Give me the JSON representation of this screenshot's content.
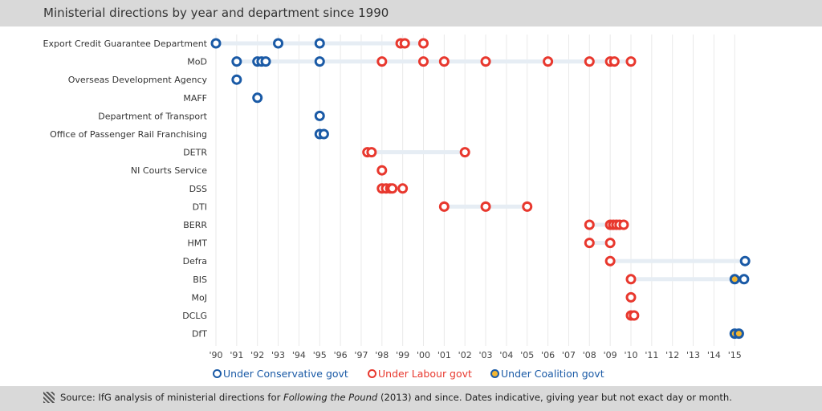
{
  "title": "Ministerial directions by year and department since 1990",
  "source": {
    "prefix": "Source: IfG analysis of ministerial directions for ",
    "italic": "Following the Pound",
    "suffix": " (2013) and since. Dates indicative, giving year but not exact day or month."
  },
  "colors": {
    "conservative": "#1a5aa6",
    "labour": "#e8382e",
    "coalition_fill": "#f2b632",
    "track": "#e6edf4",
    "grid": "#e9e9e9"
  },
  "legend": [
    {
      "key": "conservative",
      "label": "Under Conservative govt"
    },
    {
      "key": "labour",
      "label": "Under Labour govt"
    },
    {
      "key": "coalition",
      "label": "Under Coalition govt"
    }
  ],
  "chart_data": {
    "type": "scatter",
    "xlim": [
      1990,
      2015.5
    ],
    "x_ticks": [
      {
        "v": 1990,
        "label": "'90"
      },
      {
        "v": 1991,
        "label": "'91"
      },
      {
        "v": 1992,
        "label": "'92"
      },
      {
        "v": 1993,
        "label": "'93"
      },
      {
        "v": 1994,
        "label": "'94"
      },
      {
        "v": 1995,
        "label": "'95"
      },
      {
        "v": 1996,
        "label": "'96"
      },
      {
        "v": 1997,
        "label": "'97"
      },
      {
        "v": 1998,
        "label": "'98"
      },
      {
        "v": 1999,
        "label": "'99"
      },
      {
        "v": 2000,
        "label": "'00"
      },
      {
        "v": 2001,
        "label": "'01"
      },
      {
        "v": 2002,
        "label": "'02"
      },
      {
        "v": 2003,
        "label": "'03"
      },
      {
        "v": 2004,
        "label": "'04"
      },
      {
        "v": 2005,
        "label": "'05"
      },
      {
        "v": 2006,
        "label": "'06"
      },
      {
        "v": 2007,
        "label": "'07"
      },
      {
        "v": 2008,
        "label": "'08"
      },
      {
        "v": 2009,
        "label": "'09"
      },
      {
        "v": 2010,
        "label": "'10"
      },
      {
        "v": 2011,
        "label": "'11"
      },
      {
        "v": 2012,
        "label": "'12"
      },
      {
        "v": 2013,
        "label": "'13"
      },
      {
        "v": 2014,
        "label": "'14"
      },
      {
        "v": 2015,
        "label": "'15"
      }
    ],
    "departments": [
      {
        "name": "Export Credit Guarantee Department",
        "points": [
          {
            "x": 1990.0,
            "govt": "conservative"
          },
          {
            "x": 1993.0,
            "govt": "conservative"
          },
          {
            "x": 1995.0,
            "govt": "conservative"
          },
          {
            "x": 1998.9,
            "govt": "labour"
          },
          {
            "x": 1999.1,
            "govt": "labour"
          },
          {
            "x": 2000.0,
            "govt": "labour"
          }
        ]
      },
      {
        "name": "MoD",
        "points": [
          {
            "x": 1991.0,
            "govt": "conservative"
          },
          {
            "x": 1992.0,
            "govt": "conservative"
          },
          {
            "x": 1992.2,
            "govt": "conservative"
          },
          {
            "x": 1992.4,
            "govt": "conservative"
          },
          {
            "x": 1995.0,
            "govt": "conservative"
          },
          {
            "x": 1998.0,
            "govt": "labour"
          },
          {
            "x": 2000.0,
            "govt": "labour"
          },
          {
            "x": 2001.0,
            "govt": "labour"
          },
          {
            "x": 2003.0,
            "govt": "labour"
          },
          {
            "x": 2006.0,
            "govt": "labour"
          },
          {
            "x": 2008.0,
            "govt": "labour"
          },
          {
            "x": 2009.0,
            "govt": "labour"
          },
          {
            "x": 2009.2,
            "govt": "labour"
          },
          {
            "x": 2010.0,
            "govt": "labour"
          }
        ]
      },
      {
        "name": "Overseas Development Agency",
        "points": [
          {
            "x": 1991.0,
            "govt": "conservative"
          }
        ]
      },
      {
        "name": "MAFF",
        "points": [
          {
            "x": 1992.0,
            "govt": "conservative"
          }
        ]
      },
      {
        "name": "Department of Transport",
        "points": [
          {
            "x": 1995.0,
            "govt": "conservative"
          }
        ]
      },
      {
        "name": "Office of Passenger Rail Franchising",
        "points": [
          {
            "x": 1995.0,
            "govt": "conservative"
          },
          {
            "x": 1995.2,
            "govt": "conservative"
          }
        ]
      },
      {
        "name": "DETR",
        "points": [
          {
            "x": 1997.3,
            "govt": "labour"
          },
          {
            "x": 1997.5,
            "govt": "labour"
          },
          {
            "x": 2002.0,
            "govt": "labour"
          }
        ]
      },
      {
        "name": "NI Courts Service",
        "points": [
          {
            "x": 1998.0,
            "govt": "labour"
          }
        ]
      },
      {
        "name": "DSS",
        "points": [
          {
            "x": 1998.0,
            "govt": "labour"
          },
          {
            "x": 1998.2,
            "govt": "labour"
          },
          {
            "x": 1998.4,
            "govt": "labour"
          },
          {
            "x": 1998.5,
            "govt": "labour"
          },
          {
            "x": 1999.0,
            "govt": "labour"
          }
        ]
      },
      {
        "name": "DTI",
        "points": [
          {
            "x": 2001.0,
            "govt": "labour"
          },
          {
            "x": 2003.0,
            "govt": "labour"
          },
          {
            "x": 2005.0,
            "govt": "labour"
          }
        ]
      },
      {
        "name": "BERR",
        "points": [
          {
            "x": 2008.0,
            "govt": "labour"
          },
          {
            "x": 2009.0,
            "govt": "labour"
          },
          {
            "x": 2009.15,
            "govt": "labour"
          },
          {
            "x": 2009.3,
            "govt": "labour"
          },
          {
            "x": 2009.45,
            "govt": "labour"
          },
          {
            "x": 2009.65,
            "govt": "labour"
          }
        ]
      },
      {
        "name": "HMT",
        "points": [
          {
            "x": 2008.0,
            "govt": "labour"
          },
          {
            "x": 2009.0,
            "govt": "labour"
          }
        ]
      },
      {
        "name": "Defra",
        "points": [
          {
            "x": 2009.0,
            "govt": "labour"
          },
          {
            "x": 2015.5,
            "govt": "conservative"
          }
        ]
      },
      {
        "name": "BIS",
        "points": [
          {
            "x": 2010.0,
            "govt": "labour"
          },
          {
            "x": 2015.0,
            "govt": "coalition"
          },
          {
            "x": 2015.45,
            "govt": "conservative"
          }
        ]
      },
      {
        "name": "MoJ",
        "points": [
          {
            "x": 2010.0,
            "govt": "labour"
          }
        ]
      },
      {
        "name": "DCLG",
        "points": [
          {
            "x": 2010.0,
            "govt": "labour"
          },
          {
            "x": 2010.15,
            "govt": "labour"
          }
        ]
      },
      {
        "name": "DfT",
        "points": [
          {
            "x": 2015.0,
            "govt": "coalition"
          },
          {
            "x": 2015.2,
            "govt": "coalition"
          }
        ]
      }
    ]
  }
}
